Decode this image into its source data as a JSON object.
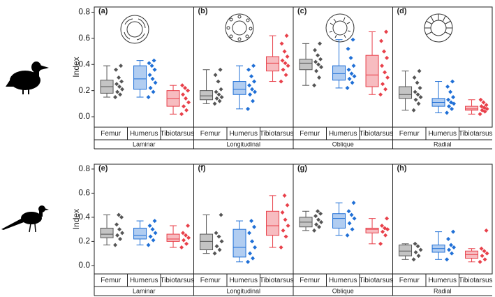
{
  "chart_data": [
    {
      "type": "box",
      "y_label": "Index",
      "ylim": [
        -0.08,
        0.84
      ],
      "yticks": [
        {
          "value": 0,
          "label": "0.0"
        },
        0.2,
        0.4,
        0.6,
        0.8
      ],
      "groups": [
        {
          "label": "(a)",
          "name": "Laminar",
          "series": [
            {
              "name": "Femur",
              "color": "#555555",
              "whisker_low": 0.15,
              "q1": 0.18,
              "median": 0.23,
              "q3": 0.28,
              "whisker_high": 0.39,
              "points": [
                0.15,
                0.17,
                0.19,
                0.21,
                0.23,
                0.25,
                0.27,
                0.3,
                0.36,
                0.39
              ]
            },
            {
              "name": "Humerus",
              "color": "#1f6fd6",
              "whisker_low": 0.15,
              "q1": 0.21,
              "median": 0.29,
              "q3": 0.39,
              "whisker_high": 0.43,
              "points": [
                0.15,
                0.19,
                0.22,
                0.26,
                0.29,
                0.32,
                0.36,
                0.39,
                0.41,
                0.43
              ]
            },
            {
              "name": "Tibiotarsus",
              "color": "#e8404a",
              "whisker_low": 0.02,
              "q1": 0.08,
              "median": 0.14,
              "q3": 0.2,
              "whisker_high": 0.24,
              "points": [
                0.02,
                0.05,
                0.08,
                0.11,
                0.14,
                0.17,
                0.2,
                0.22,
                0.24
              ]
            }
          ]
        },
        {
          "label": "(b)",
          "name": "Longitudinal",
          "series": [
            {
              "name": "Femur",
              "color": "#555555",
              "whisker_low": 0.1,
              "q1": 0.13,
              "median": 0.16,
              "q3": 0.2,
              "whisker_high": 0.36,
              "points": [
                0.1,
                0.12,
                0.14,
                0.15,
                0.17,
                0.19,
                0.21,
                0.27,
                0.32,
                0.36
              ]
            },
            {
              "name": "Humerus",
              "color": "#1f6fd6",
              "whisker_low": 0.06,
              "q1": 0.17,
              "median": 0.21,
              "q3": 0.27,
              "whisker_high": 0.39,
              "points": [
                0.06,
                0.12,
                0.17,
                0.19,
                0.21,
                0.24,
                0.27,
                0.31,
                0.36,
                0.39
              ]
            },
            {
              "name": "Tibiotarsus",
              "color": "#e8404a",
              "whisker_low": 0.27,
              "q1": 0.35,
              "median": 0.41,
              "q3": 0.46,
              "whisker_high": 0.62,
              "points": [
                0.27,
                0.32,
                0.36,
                0.39,
                0.41,
                0.43,
                0.46,
                0.5,
                0.56,
                0.62
              ]
            }
          ]
        },
        {
          "label": "(c)",
          "name": "Oblique",
          "series": [
            {
              "name": "Femur",
              "color": "#555555",
              "whisker_low": 0.24,
              "q1": 0.36,
              "median": 0.41,
              "q3": 0.44,
              "whisker_high": 0.56,
              "points": [
                0.24,
                0.3,
                0.35,
                0.38,
                0.4,
                0.42,
                0.44,
                0.47,
                0.51,
                0.56
              ]
            },
            {
              "name": "Humerus",
              "color": "#1f6fd6",
              "whisker_low": 0.22,
              "q1": 0.28,
              "median": 0.33,
              "q3": 0.39,
              "whisker_high": 0.59,
              "points": [
                0.22,
                0.26,
                0.29,
                0.31,
                0.33,
                0.36,
                0.39,
                0.45,
                0.52,
                0.59
              ]
            },
            {
              "name": "Tibiotarsus",
              "color": "#e8404a",
              "whisker_low": 0.17,
              "q1": 0.23,
              "median": 0.32,
              "q3": 0.47,
              "whisker_high": 0.65,
              "points": [
                0.17,
                0.21,
                0.25,
                0.3,
                0.34,
                0.39,
                0.45,
                0.5,
                0.58,
                0.65
              ]
            }
          ]
        },
        {
          "label": "(d)",
          "name": "Radial",
          "series": [
            {
              "name": "Femur",
              "color": "#555555",
              "whisker_low": 0.05,
              "q1": 0.14,
              "median": 0.17,
              "q3": 0.23,
              "whisker_high": 0.35,
              "points": [
                0.05,
                0.1,
                0.13,
                0.15,
                0.17,
                0.19,
                0.22,
                0.26,
                0.3,
                0.35
              ]
            },
            {
              "name": "Humerus",
              "color": "#1f6fd6",
              "whisker_low": 0.03,
              "q1": 0.08,
              "median": 0.11,
              "q3": 0.14,
              "whisker_high": 0.27,
              "points": [
                0.03,
                0.06,
                0.08,
                0.1,
                0.11,
                0.13,
                0.15,
                0.19,
                0.23,
                0.27
              ]
            },
            {
              "name": "Tibiotarsus",
              "color": "#e8404a",
              "whisker_low": 0.02,
              "q1": 0.05,
              "median": 0.06,
              "q3": 0.08,
              "whisker_high": 0.13,
              "points": [
                0.02,
                0.04,
                0.05,
                0.06,
                0.07,
                0.08,
                0.09,
                0.11,
                0.13
              ]
            }
          ]
        }
      ]
    },
    {
      "type": "box",
      "y_label": "Index",
      "ylim": [
        -0.07,
        0.84
      ],
      "yticks": [
        {
          "value": 0,
          "label": "0.0"
        },
        0.2,
        0.4,
        0.6,
        0.8
      ],
      "groups": [
        {
          "label": "(e)",
          "name": "Laminar",
          "series": [
            {
              "name": "Femur",
              "color": "#555555",
              "whisker_low": 0.17,
              "q1": 0.23,
              "median": 0.26,
              "q3": 0.31,
              "whisker_high": 0.42,
              "points": [
                0.17,
                0.22,
                0.25,
                0.27,
                0.3,
                0.34,
                0.4,
                0.42
              ]
            },
            {
              "name": "Humerus",
              "color": "#1f6fd6",
              "whisker_low": 0.17,
              "q1": 0.22,
              "median": 0.25,
              "q3": 0.31,
              "whisker_high": 0.37,
              "points": [
                0.17,
                0.21,
                0.24,
                0.27,
                0.3,
                0.33,
                0.37
              ]
            },
            {
              "name": "Tibiotarsus",
              "color": "#e8404a",
              "whisker_low": 0.15,
              "q1": 0.2,
              "median": 0.22,
              "q3": 0.26,
              "whisker_high": 0.33,
              "points": [
                0.15,
                0.18,
                0.21,
                0.23,
                0.25,
                0.27,
                0.33
              ]
            }
          ]
        },
        {
          "label": "(f)",
          "name": "Longitudinal",
          "series": [
            {
              "name": "Femur",
              "color": "#555555",
              "whisker_low": 0.1,
              "q1": 0.13,
              "median": 0.2,
              "q3": 0.26,
              "whisker_high": 0.42,
              "points": [
                0.1,
                0.13,
                0.16,
                0.2,
                0.24,
                0.27,
                0.42
              ]
            },
            {
              "name": "Humerus",
              "color": "#1f6fd6",
              "whisker_low": 0.03,
              "q1": 0.07,
              "median": 0.15,
              "q3": 0.3,
              "whisker_high": 0.37,
              "points": [
                0.03,
                0.06,
                0.1,
                0.15,
                0.2,
                0.27,
                0.32,
                0.37
              ]
            },
            {
              "name": "Tibiotarsus",
              "color": "#e8404a",
              "whisker_low": 0.15,
              "q1": 0.25,
              "median": 0.33,
              "q3": 0.45,
              "whisker_high": 0.58,
              "points": [
                0.15,
                0.24,
                0.29,
                0.33,
                0.38,
                0.44,
                0.5,
                0.58
              ]
            }
          ]
        },
        {
          "label": "(g)",
          "name": "Oblique",
          "series": [
            {
              "name": "Femur",
              "color": "#555555",
              "whisker_low": 0.29,
              "q1": 0.32,
              "median": 0.36,
              "q3": 0.4,
              "whisker_high": 0.45,
              "points": [
                0.29,
                0.32,
                0.34,
                0.36,
                0.38,
                0.41,
                0.43,
                0.45
              ]
            },
            {
              "name": "Humerus",
              "color": "#1f6fd6",
              "whisker_low": 0.25,
              "q1": 0.31,
              "median": 0.39,
              "q3": 0.43,
              "whisker_high": 0.52,
              "points": [
                0.25,
                0.3,
                0.35,
                0.39,
                0.42,
                0.45,
                0.52
              ]
            },
            {
              "name": "Tibiotarsus",
              "color": "#e8404a",
              "whisker_low": 0.18,
              "q1": 0.27,
              "median": 0.3,
              "q3": 0.31,
              "whisker_high": 0.39,
              "points": [
                0.18,
                0.25,
                0.28,
                0.3,
                0.31,
                0.33,
                0.39
              ]
            }
          ]
        },
        {
          "label": "(h)",
          "name": "Radial",
          "series": [
            {
              "name": "Femur",
              "color": "#555555",
              "whisker_low": 0.05,
              "q1": 0.08,
              "median": 0.12,
              "q3": 0.17,
              "whisker_high": 0.18,
              "points": [
                0.05,
                0.08,
                0.11,
                0.13,
                0.16,
                0.18
              ]
            },
            {
              "name": "Humerus",
              "color": "#1f6fd6",
              "whisker_low": 0.05,
              "q1": 0.11,
              "median": 0.14,
              "q3": 0.17,
              "whisker_high": 0.28,
              "points": [
                0.05,
                0.1,
                0.13,
                0.15,
                0.17,
                0.22,
                0.28
              ]
            },
            {
              "name": "Tibiotarsus",
              "color": "#e8404a",
              "whisker_low": 0.03,
              "q1": 0.06,
              "median": 0.09,
              "q3": 0.12,
              "whisker_high": 0.14,
              "points": [
                0.03,
                0.05,
                0.08,
                0.1,
                0.12,
                0.14,
                0.29
              ]
            }
          ]
        }
      ]
    }
  ]
}
